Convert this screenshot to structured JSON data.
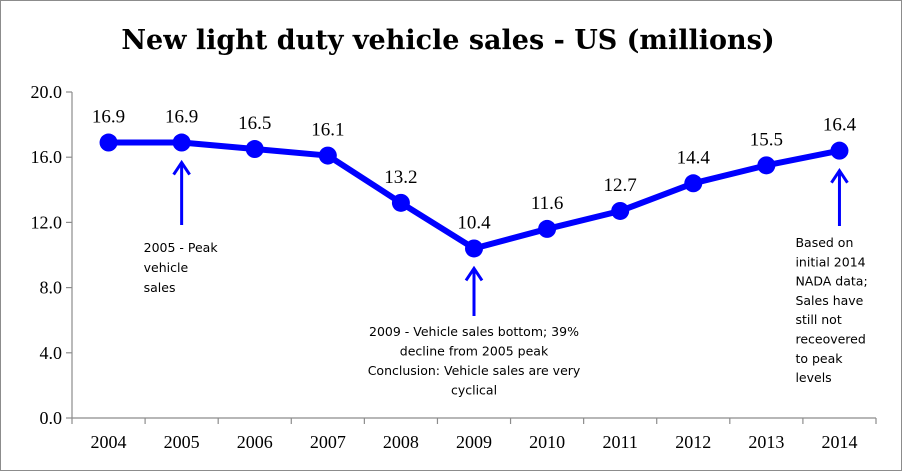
{
  "chart_data": {
    "type": "line",
    "title": "New light duty vehicle sales - US (millions)",
    "xlabel": "",
    "ylabel": "",
    "categories": [
      "2004",
      "2005",
      "2006",
      "2007",
      "2008",
      "2009",
      "2010",
      "2011",
      "2012",
      "2013",
      "2014"
    ],
    "series": [
      {
        "name": "New light duty vehicle sales",
        "values": [
          16.9,
          16.9,
          16.5,
          16.1,
          13.2,
          10.4,
          11.6,
          12.7,
          14.4,
          15.5,
          16.4
        ]
      }
    ],
    "data_labels": [
      "16.9",
      "16.9",
      "16.5",
      "16.1",
      "13.2",
      "10.4",
      "11.6",
      "12.7",
      "14.4",
      "15.5",
      "16.4"
    ],
    "ylim": [
      0,
      20
    ],
    "yticks": [
      "0.0",
      "4.0",
      "8.0",
      "12.0",
      "16.0",
      "20.0"
    ],
    "grid": false,
    "legend": "none",
    "colors": {
      "series": "#0000ff",
      "axis": "#8c8c8c",
      "arrow": "#0000ff"
    },
    "annotations": [
      {
        "id": "peak",
        "category": "2005",
        "lines": [
          "2005 - Peak",
          "vehicle",
          "sales"
        ]
      },
      {
        "id": "bottom",
        "category": "2009",
        "lines": [
          "2009 - Vehicle sales bottom; 39%",
          "decline from 2005 peak",
          "Conclusion: Vehicle sales are very",
          "cyclical"
        ]
      },
      {
        "id": "latest",
        "category": "2014",
        "lines": [
          "Based on",
          "initial 2014",
          "NADA data;",
          "Sales have",
          "still not",
          "receovered",
          "to peak",
          "levels"
        ]
      }
    ]
  }
}
